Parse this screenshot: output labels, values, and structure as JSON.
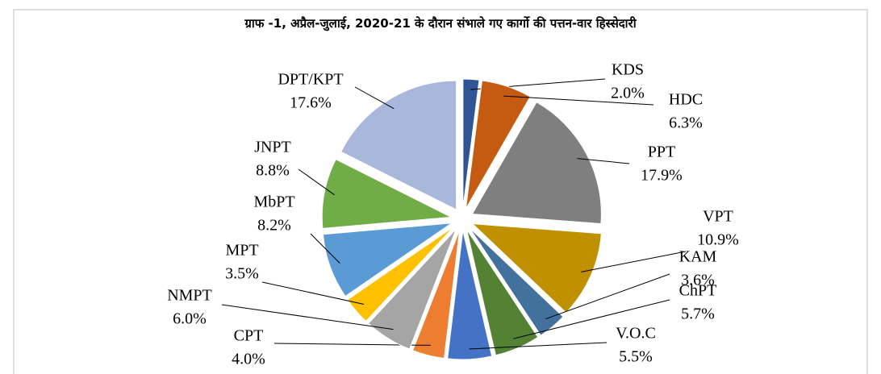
{
  "chart_data": {
    "type": "pie",
    "title": "ग्राफ -1, अप्रैल-जुलाई, 2020-21 के दौरान संभाले गए कार्गो की पत्तन-वार हिस्सेदारी",
    "categories": [
      "KDS",
      "HDC",
      "PPT",
      "VPT",
      "KAM",
      "ChPT",
      "V.O.C",
      "CPT",
      "NMPT",
      "MPT",
      "MbPT",
      "JNPT",
      "DPT/KPT"
    ],
    "values": [
      2.0,
      6.3,
      17.9,
      10.9,
      3.6,
      5.7,
      5.5,
      4.0,
      6.0,
      3.5,
      8.2,
      8.8,
      17.6
    ],
    "value_labels": [
      "2.0%",
      "6.3%",
      "17.9%",
      "10.9%",
      "3.6%",
      "5.7%",
      "5.5%",
      "4.0%",
      "6.0%",
      "3.5%",
      "8.2%",
      "8.8%",
      "17.6%"
    ],
    "colors": [
      "#2f5597",
      "#c55a11",
      "#7f7f7f",
      "#bf9000",
      "#41719c",
      "#548235",
      "#4472c4",
      "#ed7d31",
      "#a5a5a5",
      "#ffc000",
      "#5b9bd5",
      "#70ad47",
      "#a9b7dd"
    ]
  }
}
